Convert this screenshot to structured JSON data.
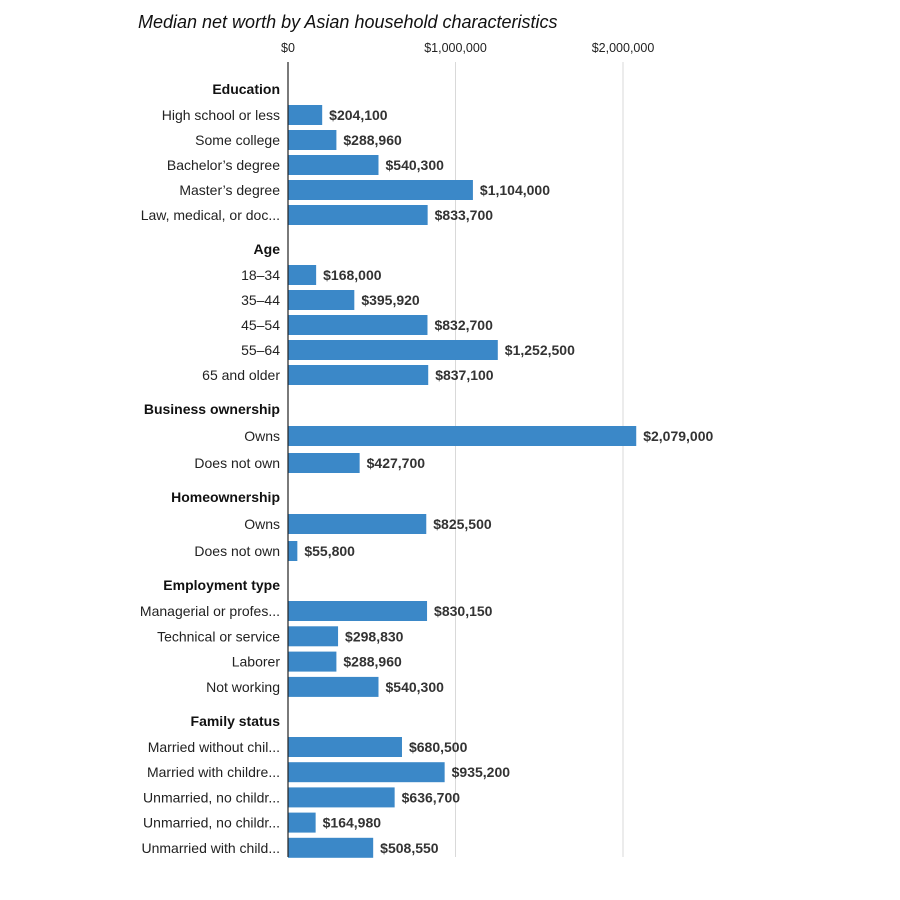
{
  "chart_data": {
    "type": "bar",
    "orientation": "horizontal",
    "title": "Median net worth by Asian household characteristics",
    "xlim": [
      0,
      2500000
    ],
    "x_ticks": [
      {
        "value": 0,
        "label": "$0"
      },
      {
        "value": 1000000,
        "label": "$1,000,000"
      },
      {
        "value": 2000000,
        "label": "$2,000,000"
      }
    ],
    "grid": true,
    "color": "#3b88c8",
    "groups": [
      {
        "name": "Education",
        "items": [
          {
            "label": "High school or less",
            "value": 204100,
            "value_label": "$204,100"
          },
          {
            "label": "Some college",
            "value": 288960,
            "value_label": "$288,960"
          },
          {
            "label": "Bachelor’s degree",
            "value": 540300,
            "value_label": "$540,300"
          },
          {
            "label": "Master’s degree",
            "value": 1104000,
            "value_label": "$1,104,000"
          },
          {
            "label": "Law, medical, or doc...",
            "value": 833700,
            "value_label": "$833,700"
          }
        ]
      },
      {
        "name": "Age",
        "items": [
          {
            "label": "18–34",
            "value": 168000,
            "value_label": "$168,000"
          },
          {
            "label": "35–44",
            "value": 395920,
            "value_label": "$395,920"
          },
          {
            "label": "45–54",
            "value": 832700,
            "value_label": "$832,700"
          },
          {
            "label": "55–64",
            "value": 1252500,
            "value_label": "$1,252,500"
          },
          {
            "label": "65 and older",
            "value": 837100,
            "value_label": "$837,100"
          }
        ]
      },
      {
        "name": "Business ownership",
        "items": [
          {
            "label": "Owns",
            "value": 2079000,
            "value_label": "$2,079,000"
          },
          {
            "label": "Does not own",
            "value": 427700,
            "value_label": "$427,700"
          }
        ]
      },
      {
        "name": "Homeownership",
        "items": [
          {
            "label": "Owns",
            "value": 825500,
            "value_label": "$825,500"
          },
          {
            "label": "Does not own",
            "value": 55800,
            "value_label": "$55,800"
          }
        ]
      },
      {
        "name": "Employment type",
        "items": [
          {
            "label": "Managerial or profes...",
            "value": 830150,
            "value_label": "$830,150"
          },
          {
            "label": "Technical or service",
            "value": 298830,
            "value_label": "$298,830"
          },
          {
            "label": "Laborer",
            "value": 288960,
            "value_label": "$288,960"
          },
          {
            "label": "Not working",
            "value": 540300,
            "value_label": "$540,300"
          }
        ]
      },
      {
        "name": "Family status",
        "items": [
          {
            "label": "Married without chil...",
            "value": 680500,
            "value_label": "$680,500"
          },
          {
            "label": "Married with childre...",
            "value": 935200,
            "value_label": "$935,200"
          },
          {
            "label": "Unmarried, no childr...",
            "value": 636700,
            "value_label": "$636,700"
          },
          {
            "label": "Unmarried, no childr...",
            "value": 164980,
            "value_label": "$164,980"
          },
          {
            "label": "Unmarried with child...",
            "value": 508550,
            "value_label": "$508,550"
          }
        ]
      }
    ]
  }
}
